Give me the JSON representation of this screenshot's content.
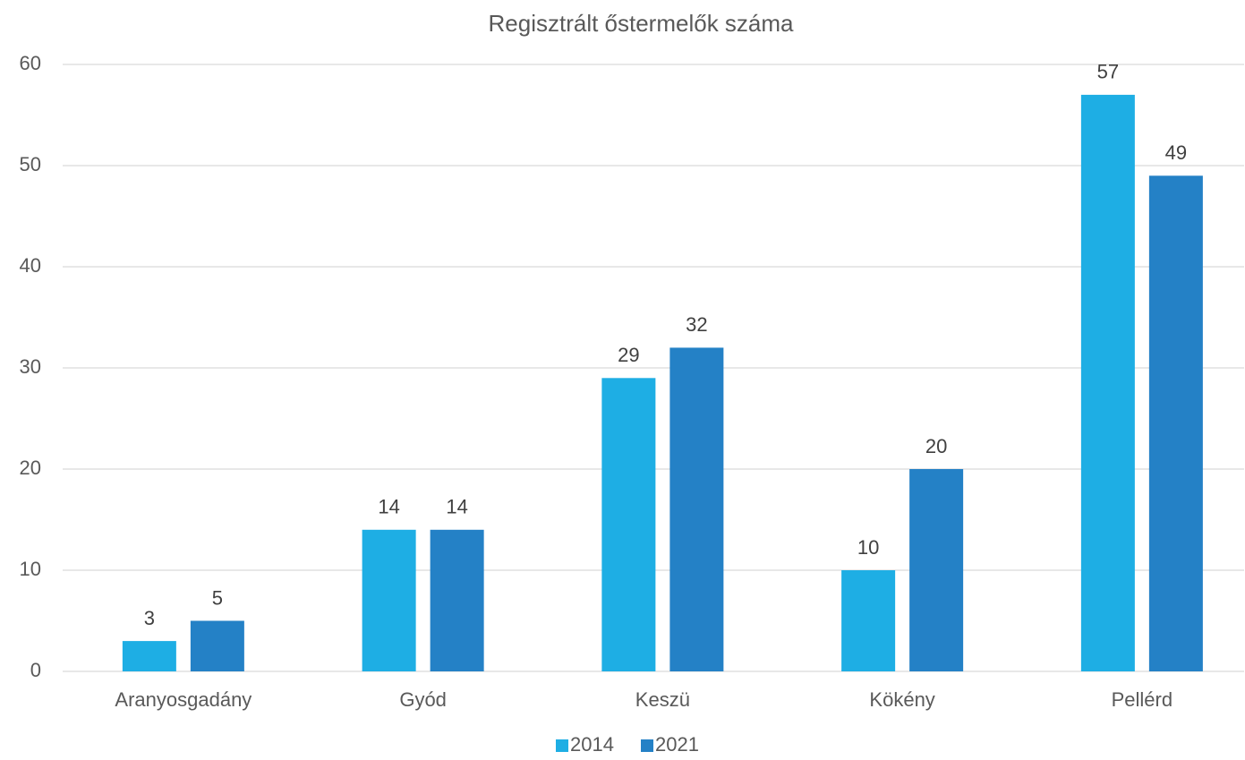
{
  "chart_data": {
    "type": "bar",
    "title": "Regisztrált őstermelők száma",
    "categories": [
      "Aranyosgadány",
      "Gyód",
      "Keszü",
      "Kökény",
      "Pellérd"
    ],
    "series": [
      {
        "name": "2014",
        "color": "#1eaee4",
        "values": [
          3,
          14,
          29,
          10,
          57
        ]
      },
      {
        "name": "2021",
        "color": "#2481c6",
        "values": [
          5,
          14,
          32,
          20,
          49
        ]
      }
    ],
    "ylim": [
      0,
      60
    ],
    "yticks": [
      0,
      10,
      20,
      30,
      40,
      50,
      60
    ],
    "grid": true,
    "legend": "bottom"
  }
}
